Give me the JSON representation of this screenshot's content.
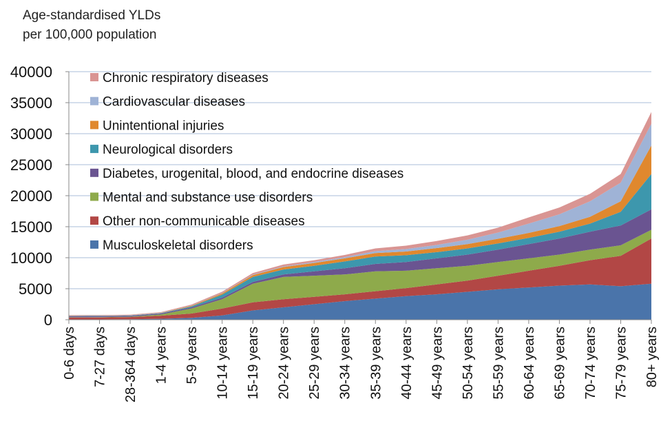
{
  "chart_data": {
    "type": "area",
    "stacked": true,
    "title": "",
    "ylabel_lines": [
      "Age-standardised YLDs",
      "per 100,000 population"
    ],
    "xlabel": "",
    "ylim": [
      0,
      40000
    ],
    "yticks": [
      0,
      5000,
      10000,
      15000,
      20000,
      25000,
      30000,
      35000,
      40000
    ],
    "grid": true,
    "categories": [
      "0-6 days",
      "7-27 days",
      "28-364 days",
      "1-4 years",
      "5-9 years",
      "10-14 years",
      "15-19 years",
      "20-24 years",
      "25-29 years",
      "30-34 years",
      "35-39 years",
      "40-44 years",
      "45-49 years",
      "50-54 years",
      "55-59 years",
      "60-64 years",
      "65-69 years",
      "70-74 years",
      "75-79 years",
      "80+ years"
    ],
    "series": [
      {
        "name": "Musculoskeletal disorders",
        "color": "#4a74aa",
        "values": [
          50,
          60,
          80,
          150,
          300,
          700,
          1500,
          2000,
          2500,
          3000,
          3400,
          3800,
          4100,
          4500,
          4900,
          5200,
          5500,
          5700,
          5400,
          5800
        ]
      },
      {
        "name": "Other non-communicable diseases",
        "color": "#b24745",
        "values": [
          300,
          300,
          350,
          500,
          700,
          1100,
          1300,
          1300,
          1200,
          1100,
          1200,
          1300,
          1600,
          1800,
          2200,
          2700,
          3200,
          3900,
          4900,
          7300
        ]
      },
      {
        "name": "Mental and substance use disorders",
        "color": "#8eaa4b",
        "values": [
          50,
          50,
          50,
          200,
          800,
          1500,
          3000,
          3600,
          3400,
          3200,
          3200,
          2800,
          2600,
          2400,
          2200,
          2000,
          1800,
          1700,
          1700,
          1400
        ]
      },
      {
        "name": "Diabetes, urogenital, blood, and endocrine diseases",
        "color": "#6a5491",
        "values": [
          150,
          150,
          150,
          150,
          200,
          250,
          300,
          400,
          700,
          1000,
          1200,
          1400,
          1600,
          1800,
          2000,
          2300,
          2600,
          2900,
          3200,
          3300
        ]
      },
      {
        "name": "Neurological disorders",
        "color": "#3d97ad",
        "values": [
          50,
          50,
          50,
          50,
          150,
          500,
          800,
          800,
          900,
          1100,
          1200,
          1100,
          1000,
          1000,
          1000,
          1000,
          1100,
          1300,
          2200,
          5700
        ]
      },
      {
        "name": "Unintentional injuries",
        "color": "#e0882e",
        "values": [
          20,
          20,
          20,
          40,
          100,
          200,
          300,
          400,
          450,
          500,
          550,
          600,
          650,
          700,
          750,
          800,
          900,
          1100,
          1700,
          4600
        ]
      },
      {
        "name": "Cardiovascular diseases",
        "color": "#9fb3d6",
        "values": [
          20,
          20,
          20,
          30,
          40,
          60,
          80,
          100,
          150,
          200,
          300,
          400,
          500,
          700,
          1000,
          1500,
          1900,
          2500,
          3000,
          3500
        ]
      },
      {
        "name": "Chronic respiratory diseases",
        "color": "#d99593",
        "values": [
          100,
          100,
          100,
          100,
          150,
          200,
          250,
          300,
          300,
          350,
          450,
          550,
          650,
          700,
          800,
          1000,
          1100,
          1200,
          1400,
          1900
        ]
      }
    ],
    "legend_position": "top-left (inside plot)"
  }
}
